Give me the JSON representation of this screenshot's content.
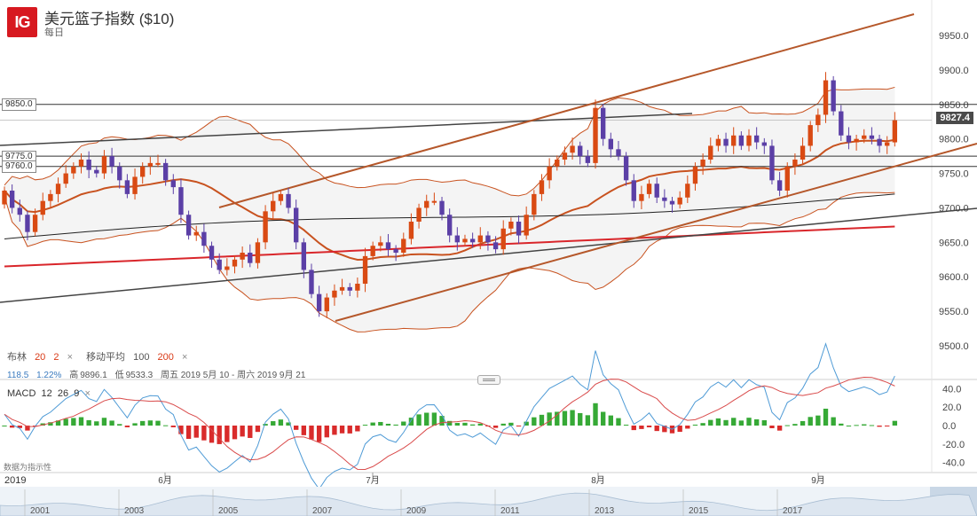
{
  "header": {
    "logo_text": "IG",
    "title": "美元篮子指数 ($10)",
    "frequency": "每日"
  },
  "price_tag": "9827.4",
  "horizontal_levels": [
    {
      "label": "9850.0",
      "value": 9850
    },
    {
      "label": "9775.0",
      "value": 9775
    },
    {
      "label": "9760.0",
      "value": 9760
    }
  ],
  "indicators": {
    "bollinger_label": "布林",
    "bollinger_period": "20",
    "bollinger_dev": "2",
    "ma_label": "移动平均",
    "ma_fast": "100",
    "ma_slow": "200",
    "close_icon": "×",
    "change": "118.5",
    "change_pct": "1.22%",
    "high_label": "高",
    "high_value": "9896.1",
    "low_label": "低",
    "low_value": "9533.3",
    "date_range": "周五 2019 5月 10 - 周六 2019 9月 21"
  },
  "macd": {
    "label": "MACD",
    "fast": "12",
    "slow": "26",
    "signal": "9",
    "note": "数据为指示性"
  },
  "colors": {
    "up_candle": "#d94a13",
    "down_candle": "#5b3fa6",
    "upper_band": "#c8521f",
    "bb_mid": "#c8521f",
    "ma100": "#222222",
    "ma200": "#d9262b",
    "trend": "#b5572a",
    "macd_pos": "#36a936",
    "macd_neg": "#d92b2b",
    "macd_line": "#4f9bd6",
    "signal_line": "#d94b4b"
  },
  "chart_data": [
    {
      "type": "candlestick",
      "title": "美元篮子指数 ($10)",
      "x_tick_labels": [
        "6月",
        "7月",
        "8月",
        "9月"
      ],
      "y_tick_labels": [
        "9500.0",
        "9550.0",
        "9600.0",
        "9650.0",
        "9700.0",
        "9750.0",
        "9800.0",
        "9850.0",
        "9900.0",
        "9950.0"
      ],
      "ylim": [
        9470,
        9990
      ],
      "closes": [
        9725,
        9700,
        9690,
        9665,
        9690,
        9710,
        9720,
        9735,
        9750,
        9760,
        9770,
        9755,
        9750,
        9775,
        9760,
        9740,
        9720,
        9745,
        9760,
        9765,
        9765,
        9740,
        9730,
        9690,
        9660,
        9665,
        9645,
        9625,
        9610,
        9615,
        9625,
        9635,
        9620,
        9650,
        9695,
        9710,
        9720,
        9700,
        9650,
        9610,
        9575,
        9550,
        9570,
        9580,
        9585,
        9580,
        9590,
        9630,
        9645,
        9650,
        9640,
        9635,
        9655,
        9680,
        9700,
        9710,
        9710,
        9690,
        9660,
        9650,
        9655,
        9650,
        9660,
        9650,
        9640,
        9670,
        9680,
        9660,
        9690,
        9720,
        9740,
        9760,
        9770,
        9780,
        9790,
        9775,
        9765,
        9845,
        9800,
        9785,
        9775,
        9740,
        9710,
        9720,
        9735,
        9715,
        9710,
        9705,
        9715,
        9735,
        9760,
        9770,
        9790,
        9800,
        9790,
        9805,
        9790,
        9805,
        9795,
        9790,
        9740,
        9725,
        9760,
        9770,
        9790,
        9820,
        9835,
        9885,
        9840,
        9805,
        9795,
        9800,
        9805,
        9800,
        9790,
        9795,
        9827
      ],
      "opens": [
        9705,
        9725,
        9700,
        9690,
        9665,
        9690,
        9710,
        9720,
        9735,
        9750,
        9760,
        9770,
        9755,
        9750,
        9775,
        9760,
        9740,
        9720,
        9745,
        9760,
        9765,
        9765,
        9740,
        9730,
        9690,
        9660,
        9665,
        9645,
        9625,
        9610,
        9615,
        9625,
        9635,
        9620,
        9650,
        9695,
        9710,
        9720,
        9700,
        9650,
        9610,
        9575,
        9550,
        9570,
        9580,
        9585,
        9580,
        9590,
        9630,
        9645,
        9650,
        9640,
        9635,
        9655,
        9680,
        9700,
        9710,
        9710,
        9690,
        9660,
        9650,
        9655,
        9650,
        9660,
        9650,
        9640,
        9670,
        9680,
        9660,
        9690,
        9720,
        9740,
        9760,
        9770,
        9780,
        9790,
        9775,
        9765,
        9845,
        9800,
        9785,
        9775,
        9740,
        9710,
        9720,
        9735,
        9715,
        9710,
        9705,
        9715,
        9735,
        9760,
        9770,
        9790,
        9800,
        9790,
        9805,
        9790,
        9805,
        9795,
        9790,
        9740,
        9725,
        9760,
        9770,
        9790,
        9820,
        9835,
        9885,
        9840,
        9805,
        9795,
        9800,
        9805,
        9800,
        9790,
        9795
      ],
      "high": 9896.1,
      "low": 9533.3
    },
    {
      "type": "bar",
      "title": "MACD 12 26 9",
      "y_tick_labels": [
        "40.0",
        "20.0",
        "0.0",
        "-20.0",
        "-40.0"
      ],
      "ylim": [
        -48,
        48
      ]
    }
  ],
  "nav": {
    "current_year": "2019",
    "years": [
      "2001",
      "2003",
      "2005",
      "2007",
      "2009",
      "2011",
      "2013",
      "2015",
      "2017"
    ]
  }
}
